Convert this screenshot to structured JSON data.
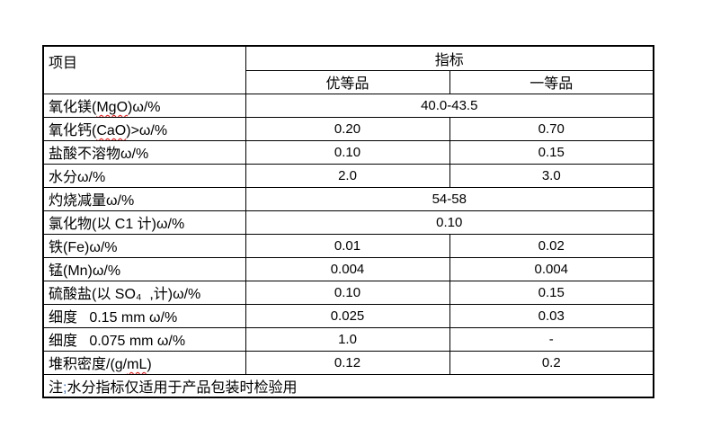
{
  "table": {
    "header": {
      "item_label": "项目",
      "indicator_label": "指标",
      "grade_columns": [
        "优等品",
        "一等品"
      ]
    },
    "rows": [
      {
        "label_parts": [
          {
            "t": "氧化镁("
          },
          {
            "t": "MgO",
            "spell": true
          },
          {
            "t": ")ω/%"
          }
        ],
        "merged": "40.0-43.5"
      },
      {
        "label_parts": [
          {
            "t": "氧化钙("
          },
          {
            "t": "CaO",
            "spell": true
          },
          {
            "t": ")>ω/%"
          }
        ],
        "values": [
          "0.20",
          "0.70"
        ]
      },
      {
        "label_parts": [
          {
            "t": "盐酸不溶物ω/%"
          }
        ],
        "values": [
          "0.10",
          "0.15"
        ]
      },
      {
        "label_parts": [
          {
            "t": "水分ω/%"
          }
        ],
        "values": [
          "2.0",
          "3.0"
        ]
      },
      {
        "label_parts": [
          {
            "t": "灼烧减量ω/%"
          }
        ],
        "merged": "54-58"
      },
      {
        "label_parts": [
          {
            "t": "氯化物(以 C1 计)ω/%"
          }
        ],
        "merged": "0.10"
      },
      {
        "label_parts": [
          {
            "t": "铁(Fe)ω/%"
          }
        ],
        "values": [
          "0.01",
          "0.02"
        ]
      },
      {
        "label_parts": [
          {
            "t": "锰(Mn)ω/%"
          }
        ],
        "values": [
          "0.004",
          "0.004"
        ]
      },
      {
        "label_parts": [
          {
            "t": "硫酸盐(以 SO₄  ,计)ω/%"
          }
        ],
        "values": [
          "0.10",
          "0.15"
        ]
      },
      {
        "label_parts": [
          {
            "t": "细度   0.15 mm ω/%"
          }
        ],
        "values": [
          "0.025",
          "0.03"
        ]
      },
      {
        "label_parts": [
          {
            "t": "细度   0.075 mm ω/%"
          }
        ],
        "values": [
          "1.0",
          "-"
        ]
      },
      {
        "label_parts": [
          {
            "t": "堆积密度/(g/"
          },
          {
            "t": "mL",
            "spell": true
          },
          {
            "t": ")"
          }
        ],
        "values": [
          "0.12",
          "0.2"
        ]
      }
    ],
    "note_parts": [
      {
        "t": "注"
      },
      {
        "t": ";",
        "blue": true
      },
      {
        "t": "水分指标仅适用于产品包装时检验用"
      }
    ],
    "colors": {
      "border": "#000000",
      "text": "#000000",
      "spellcheck_underline": "#ff0000",
      "semicolon_blue": "#3a6cc5",
      "page_background": "#ffffff"
    }
  }
}
